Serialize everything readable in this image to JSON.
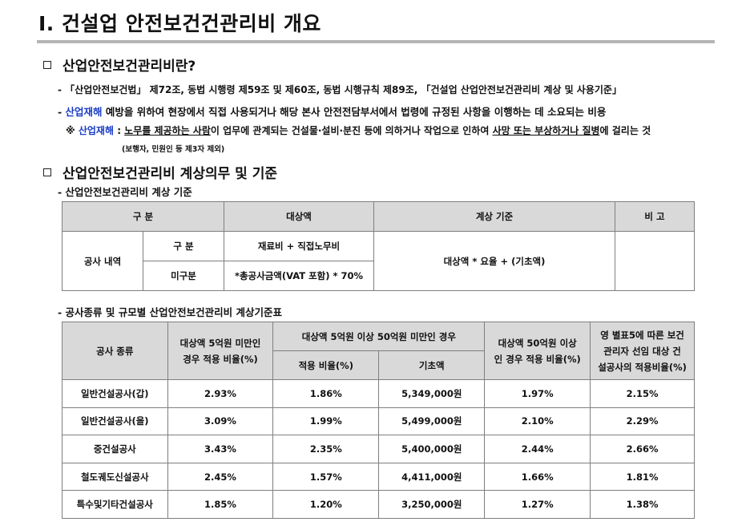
{
  "title": "Ⅰ. 건설업 안전보건건관리비 개요",
  "section1": {
    "heading": "산업안전보건관리비란?",
    "line1": "- 「산업안전보건법」 제72조, 동법 시행령 제59조 및 제60조, 동법 시행규칙 제89조, 「건설업 산업안전보건관리비 계상 및 사용기준」",
    "line2_prefix": "- ",
    "line2_highlight": "산업재해",
    "line2_rest": " 예방을 위하여 현장에서 직접 사용되거나 해당 본사 안전전담부서에서 법령에 규정된 사항을 이행하는 데 소요되는 비용",
    "line3_mark": "※ ",
    "line3_highlight": "산업재해",
    "line3_a": " : ",
    "line3_u1": "노무를 제공하는 사람",
    "line3_b": "이 업무에 관계되는 건설물·설비·분진 등에 의하거나 작업으로 인하여 ",
    "line3_u2": "사망 또는 부상하거나 질병",
    "line3_c": "에 걸리는 것",
    "note": "(보행자, 민원인 등 제3자 제외)"
  },
  "section2": {
    "heading": "산업안전보건관리비 계상의무 및 기준",
    "sub1": "- 산업안전보건관리비 계상 기준",
    "table1": {
      "headers": [
        "구 분",
        "대상액",
        "계상 기준",
        "비 고"
      ],
      "group": "공사 내역",
      "row1_label": "구 분",
      "row1_value": "재료비 + 직접노무비",
      "row2_label": "미구분",
      "row2_value": "*총공사금액(VAT 포함) * 70%",
      "formula": "대상액 * 요율 + (기초액)"
    },
    "sub2": "- 공사종류 및 규모별 산업안전보건관리비 계상기준표",
    "table2": {
      "h_type": "공사 종류",
      "h_under5_a": "대상액 5억원 미만인",
      "h_under5_b": "경우 적용 비율(%)",
      "h_mid": "대상액 5억원 이상 50억원 미만인 경우",
      "h_mid_rate": "적용 비율(%)",
      "h_mid_base": "기초액",
      "h_over50_a": "대상액 50억원 이상",
      "h_over50_b": "인 경우 적용 비율(%)",
      "h_annex_a": "영 별표5에 따른 보건",
      "h_annex_b": "관리자 선임 대상 건",
      "h_annex_c": "설공사의 적용비율(%)",
      "rows": [
        [
          "일반건설공사(갑)",
          "2.93%",
          "1.86%",
          "5,349,000원",
          "1.97%",
          "2.15%"
        ],
        [
          "일반건설공사(을)",
          "3.09%",
          "1.99%",
          "5,499,000원",
          "2.10%",
          "2.29%"
        ],
        [
          "중건설공사",
          "3.43%",
          "2.35%",
          "5,400,000원",
          "2.44%",
          "2.66%"
        ],
        [
          "철도궤도신설공사",
          "2.45%",
          "1.57%",
          "4,411,000원",
          "1.66%",
          "1.81%"
        ],
        [
          "특수및기타건설공사",
          "1.85%",
          "1.20%",
          "3,250,000원",
          "1.27%",
          "1.38%"
        ]
      ]
    }
  }
}
